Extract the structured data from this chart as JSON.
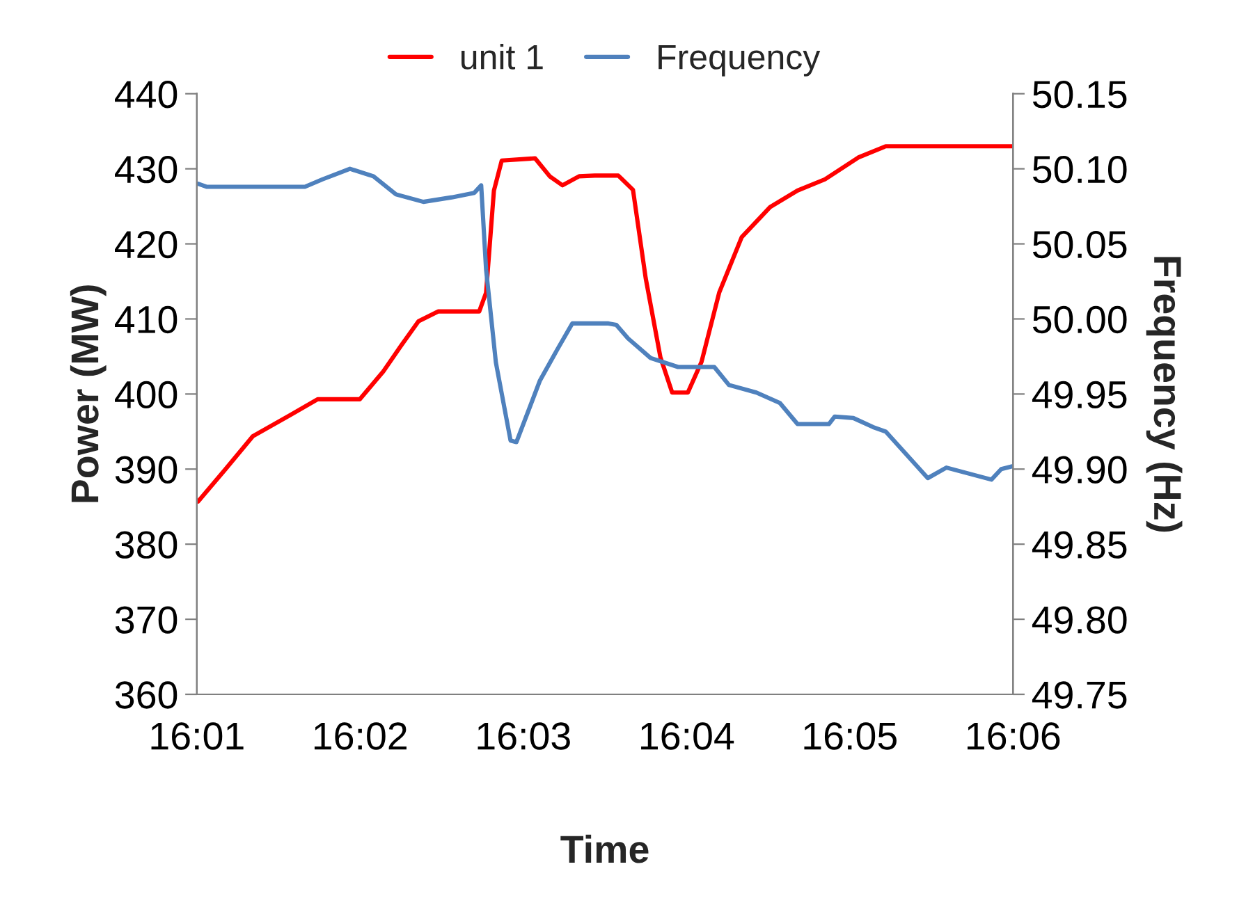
{
  "chart_data": {
    "type": "line",
    "xlabel": "Time",
    "ylabel": "Power (MW)",
    "y2label": "Frequency (Hz)",
    "xlim": [
      16.01667,
      16.1
    ],
    "xticks": [
      {
        "value": 16.01667,
        "label": "16:01"
      },
      {
        "value": 16.03333,
        "label": "16:02"
      },
      {
        "value": 16.05,
        "label": "16:03"
      },
      {
        "value": 16.06667,
        "label": "16:04"
      },
      {
        "value": 16.08333,
        "label": "16:05"
      },
      {
        "value": 16.1,
        "label": "16:06"
      }
    ],
    "ylim": [
      360,
      440
    ],
    "yticks": [
      360,
      370,
      380,
      390,
      400,
      410,
      420,
      430,
      440
    ],
    "y2lim": [
      49.75,
      50.15
    ],
    "y2ticks": [
      {
        "value": 49.75,
        "label": "49.75"
      },
      {
        "value": 49.8,
        "label": "49.80"
      },
      {
        "value": 49.85,
        "label": "49.85"
      },
      {
        "value": 49.9,
        "label": "49.90"
      },
      {
        "value": 49.95,
        "label": "49.95"
      },
      {
        "value": 50.0,
        "label": "50.00"
      },
      {
        "value": 50.05,
        "label": "50.05"
      },
      {
        "value": 50.1,
        "label": "50.10"
      },
      {
        "value": 50.15,
        "label": "50.15"
      }
    ],
    "legend": "top",
    "grid": false,
    "series": [
      {
        "name": "unit 1",
        "color": "#ff0000",
        "x": [
          16.0168,
          16.0196,
          16.0224,
          16.0262,
          16.029,
          16.0333,
          16.0357,
          16.0375,
          16.0393,
          16.0413,
          16.0455,
          16.0462,
          16.047,
          16.0478,
          16.0512,
          16.0527,
          16.054,
          16.0557,
          16.0573,
          16.0597,
          16.0612,
          16.0625,
          16.064,
          16.0652,
          16.0668,
          16.0682,
          16.07,
          16.0723,
          16.0752,
          16.078,
          16.0808,
          16.0842,
          16.087,
          16.1
        ],
        "values": [
          385.7,
          390,
          394.4,
          397.2,
          399.3,
          399.3,
          403,
          406.4,
          409.7,
          411,
          411,
          413.5,
          427.1,
          431.1,
          431.4,
          429,
          427.8,
          429,
          429.1,
          429.1,
          427.2,
          415.4,
          404.9,
          400.2,
          400.2,
          404.3,
          413.5,
          420.9,
          424.9,
          427.1,
          428.6,
          431.5,
          433,
          433
        ]
      },
      {
        "name": "Frequency",
        "color": "#4f81bd",
        "axis": "y2",
        "x": [
          16.0168,
          16.0177,
          16.0277,
          16.0295,
          16.0323,
          16.0347,
          16.037,
          16.0398,
          16.0427,
          16.045,
          16.0457,
          16.0462,
          16.0472,
          16.0487,
          16.0493,
          16.0517,
          16.0535,
          16.055,
          16.0587,
          16.0595,
          16.0607,
          16.063,
          16.0658,
          16.0695,
          16.071,
          16.0738,
          16.0762,
          16.078,
          16.0812,
          16.0818,
          16.0837,
          16.0857,
          16.087,
          16.0913,
          16.0932,
          16.0978,
          16.0988,
          16.1
        ],
        "values": [
          50.09,
          50.088,
          50.088,
          50.093,
          50.1,
          50.095,
          50.083,
          50.078,
          50.081,
          50.084,
          50.089,
          50.033,
          49.971,
          49.919,
          49.918,
          49.959,
          49.98,
          49.997,
          49.997,
          49.996,
          49.987,
          49.974,
          49.968,
          49.968,
          49.956,
          49.951,
          49.944,
          49.93,
          49.93,
          49.935,
          49.934,
          49.928,
          49.925,
          49.894,
          49.901,
          49.893,
          49.9,
          49.902
        ]
      }
    ]
  }
}
